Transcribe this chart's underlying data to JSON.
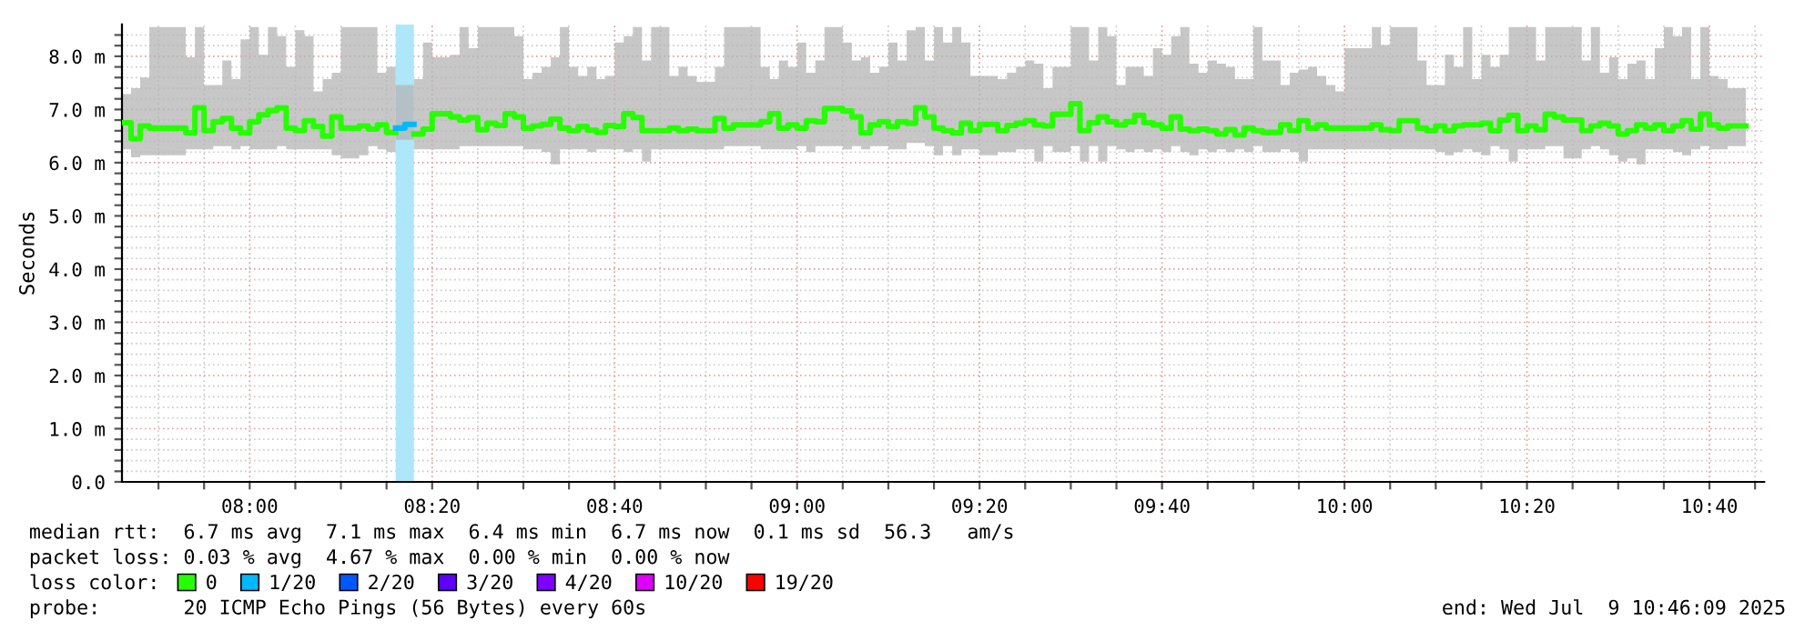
{
  "chart_data": {
    "type": "step",
    "ylabel": "Seconds",
    "legend_title": "loss color:",
    "annotations": [
      "median rtt:  6.7 ms avg  7.1 ms max  6.4 ms min  6.7 ms now  0.1 ms sd  56.3   am/s",
      "packet loss: 0.03 % avg  4.67 % max  0.00 % min  0.00 % now",
      "probe:       20 ICMP Echo Pings (56 Bytes) every 60s",
      "end: Wed Jul  9 10:46:09 2025"
    ],
    "xlim": [
      "2025-07-09T07:46",
      "2025-07-09T10:46"
    ],
    "xticks": [
      {
        "value": "2025-07-09T07:50",
        "label": null
      },
      {
        "value": "2025-07-09T07:55",
        "label": null
      },
      {
        "value": "2025-07-09T08:00",
        "label": "08:00"
      },
      {
        "value": "2025-07-09T08:05",
        "label": null
      },
      {
        "value": "2025-07-09T08:10",
        "label": null
      },
      {
        "value": "2025-07-09T08:15",
        "label": null
      },
      {
        "value": "2025-07-09T08:20",
        "label": "08:20"
      },
      {
        "value": "2025-07-09T08:25",
        "label": null
      },
      {
        "value": "2025-07-09T08:30",
        "label": null
      },
      {
        "value": "2025-07-09T08:35",
        "label": null
      },
      {
        "value": "2025-07-09T08:40",
        "label": "08:40"
      },
      {
        "value": "2025-07-09T08:45",
        "label": null
      },
      {
        "value": "2025-07-09T08:50",
        "label": null
      },
      {
        "value": "2025-07-09T08:55",
        "label": null
      },
      {
        "value": "2025-07-09T09:00",
        "label": "09:00"
      },
      {
        "value": "2025-07-09T09:05",
        "label": null
      },
      {
        "value": "2025-07-09T09:10",
        "label": null
      },
      {
        "value": "2025-07-09T09:15",
        "label": null
      },
      {
        "value": "2025-07-09T09:20",
        "label": "09:20"
      },
      {
        "value": "2025-07-09T09:25",
        "label": null
      },
      {
        "value": "2025-07-09T09:30",
        "label": null
      },
      {
        "value": "2025-07-09T09:35",
        "label": null
      },
      {
        "value": "2025-07-09T09:40",
        "label": "09:40"
      },
      {
        "value": "2025-07-09T09:45",
        "label": null
      },
      {
        "value": "2025-07-09T09:50",
        "label": null
      },
      {
        "value": "2025-07-09T09:55",
        "label": null
      },
      {
        "value": "2025-07-09T10:00",
        "label": "10:00"
      },
      {
        "value": "2025-07-09T10:05",
        "label": null
      },
      {
        "value": "2025-07-09T10:10",
        "label": null
      },
      {
        "value": "2025-07-09T10:15",
        "label": null
      },
      {
        "value": "2025-07-09T10:20",
        "label": "10:20"
      },
      {
        "value": "2025-07-09T10:25",
        "label": null
      },
      {
        "value": "2025-07-09T10:30",
        "label": null
      },
      {
        "value": "2025-07-09T10:35",
        "label": null
      },
      {
        "value": "2025-07-09T10:40",
        "label": "10:40"
      },
      {
        "value": "2025-07-09T10:45",
        "label": null
      }
    ],
    "ylim": [
      0,
      8.6
    ],
    "yticks": [
      {
        "value": 0,
        "label": "0.0"
      },
      {
        "value": 0.2,
        "label": null
      },
      {
        "value": 0.4,
        "label": null
      },
      {
        "value": 0.6,
        "label": null
      },
      {
        "value": 0.8,
        "label": null
      },
      {
        "value": 1,
        "label": "1.0 m"
      },
      {
        "value": 1.2,
        "label": null
      },
      {
        "value": 1.4,
        "label": null
      },
      {
        "value": 1.6,
        "label": null
      },
      {
        "value": 1.8,
        "label": null
      },
      {
        "value": 2,
        "label": "2.0 m"
      },
      {
        "value": 2.2,
        "label": null
      },
      {
        "value": 2.4,
        "label": null
      },
      {
        "value": 2.6,
        "label": null
      },
      {
        "value": 2.8,
        "label": null
      },
      {
        "value": 3,
        "label": "3.0 m"
      },
      {
        "value": 3.2,
        "label": null
      },
      {
        "value": 3.4,
        "label": null
      },
      {
        "value": 3.6,
        "label": null
      },
      {
        "value": 3.8,
        "label": null
      },
      {
        "value": 4,
        "label": "4.0 m"
      },
      {
        "value": 4.2,
        "label": null
      },
      {
        "value": 4.4,
        "label": null
      },
      {
        "value": 4.6,
        "label": null
      },
      {
        "value": 4.8,
        "label": null
      },
      {
        "value": 5,
        "label": "5.0 m"
      },
      {
        "value": 5.2,
        "label": null
      },
      {
        "value": 5.4,
        "label": null
      },
      {
        "value": 5.6,
        "label": null
      },
      {
        "value": 5.8,
        "label": null
      },
      {
        "value": 6,
        "label": "6.0 m"
      },
      {
        "value": 6.2,
        "label": null
      },
      {
        "value": 6.4,
        "label": null
      },
      {
        "value": 6.6,
        "label": null
      },
      {
        "value": 6.8,
        "label": null
      },
      {
        "value": 7,
        "label": "7.0 m"
      },
      {
        "value": 7.2,
        "label": null
      },
      {
        "value": 7.4,
        "label": null
      },
      {
        "value": 7.6,
        "label": null
      },
      {
        "value": 7.8,
        "label": null
      },
      {
        "value": 8,
        "label": "8.0 m"
      },
      {
        "value": 8.2,
        "label": null
      },
      {
        "value": 8.4,
        "label": null
      }
    ],
    "grid": true,
    "legend": "bottom",
    "bands": [
      {
        "axis": "x",
        "from": "2025-07-09T08:16",
        "to": "2025-07-09T08:18",
        "color": "#aee7fa"
      }
    ],
    "series": [
      {
        "name": "0",
        "color": "#26ff00",
        "x": [
          "2025-07-09T07:46",
          "2025-07-09T07:47",
          "2025-07-09T07:48",
          "2025-07-09T07:49",
          "2025-07-09T07:53",
          "2025-07-09T07:54",
          "2025-07-09T07:55",
          "2025-07-09T07:56",
          "2025-07-09T07:57",
          "2025-07-09T07:58",
          "2025-07-09T07:59",
          "2025-07-09T08:00",
          "2025-07-09T08:01",
          "2025-07-09T08:02",
          "2025-07-09T08:03",
          "2025-07-09T08:04",
          "2025-07-09T08:05",
          "2025-07-09T08:06",
          "2025-07-09T08:07",
          "2025-07-09T08:08",
          "2025-07-09T08:09",
          "2025-07-09T08:10",
          "2025-07-09T08:12",
          "2025-07-09T08:13",
          "2025-07-09T08:14",
          "2025-07-09T08:15",
          "2025-07-09T08:16",
          "2025-07-09T08:18",
          "2025-07-09T08:19",
          "2025-07-09T08:20",
          "2025-07-09T08:22",
          "2025-07-09T08:23",
          "2025-07-09T08:24",
          "2025-07-09T08:25",
          "2025-07-09T08:26",
          "2025-07-09T08:27",
          "2025-07-09T08:28",
          "2025-07-09T08:29",
          "2025-07-09T08:30",
          "2025-07-09T08:31",
          "2025-07-09T08:32",
          "2025-07-09T08:33",
          "2025-07-09T08:34",
          "2025-07-09T08:35",
          "2025-07-09T08:36",
          "2025-07-09T08:37",
          "2025-07-09T08:38",
          "2025-07-09T08:39",
          "2025-07-09T08:40",
          "2025-07-09T08:41",
          "2025-07-09T08:42",
          "2025-07-09T08:43",
          "2025-07-09T08:44",
          "2025-07-09T08:46",
          "2025-07-09T08:47",
          "2025-07-09T08:48",
          "2025-07-09T08:49",
          "2025-07-09T08:51",
          "2025-07-09T08:52",
          "2025-07-09T08:53",
          "2025-07-09T08:56",
          "2025-07-09T08:57",
          "2025-07-09T08:58",
          "2025-07-09T08:59",
          "2025-07-09T09:00",
          "2025-07-09T09:01",
          "2025-07-09T09:02",
          "2025-07-09T09:03",
          "2025-07-09T09:05",
          "2025-07-09T09:06",
          "2025-07-09T09:07",
          "2025-07-09T09:08",
          "2025-07-09T09:09",
          "2025-07-09T09:10",
          "2025-07-09T09:11",
          "2025-07-09T09:12",
          "2025-07-09T09:13",
          "2025-07-09T09:14",
          "2025-07-09T09:15",
          "2025-07-09T09:16",
          "2025-07-09T09:17",
          "2025-07-09T09:18",
          "2025-07-09T09:19",
          "2025-07-09T09:20",
          "2025-07-09T09:22",
          "2025-07-09T09:23",
          "2025-07-09T09:24",
          "2025-07-09T09:25",
          "2025-07-09T09:26",
          "2025-07-09T09:27",
          "2025-07-09T09:28",
          "2025-07-09T09:30",
          "2025-07-09T09:31",
          "2025-07-09T09:32",
          "2025-07-09T09:33",
          "2025-07-09T09:34",
          "2025-07-09T09:35",
          "2025-07-09T09:36",
          "2025-07-09T09:37",
          "2025-07-09T09:38",
          "2025-07-09T09:39",
          "2025-07-09T09:40",
          "2025-07-09T09:41",
          "2025-07-09T09:42",
          "2025-07-09T09:43",
          "2025-07-09T09:44",
          "2025-07-09T09:45",
          "2025-07-09T09:46",
          "2025-07-09T09:47",
          "2025-07-09T09:48",
          "2025-07-09T09:49",
          "2025-07-09T09:50",
          "2025-07-09T09:51",
          "2025-07-09T09:53",
          "2025-07-09T09:54",
          "2025-07-09T09:55",
          "2025-07-09T09:56",
          "2025-07-09T09:57",
          "2025-07-09T09:58",
          "2025-07-09T09:59",
          "2025-07-09T10:00",
          "2025-07-09T10:03",
          "2025-07-09T10:04",
          "2025-07-09T10:05",
          "2025-07-09T10:06",
          "2025-07-09T10:08",
          "2025-07-09T10:09",
          "2025-07-09T10:10",
          "2025-07-09T10:11",
          "2025-07-09T10:12",
          "2025-07-09T10:13",
          "2025-07-09T10:14",
          "2025-07-09T10:15",
          "2025-07-09T10:16",
          "2025-07-09T10:17",
          "2025-07-09T10:18",
          "2025-07-09T10:19",
          "2025-07-09T10:20",
          "2025-07-09T10:21",
          "2025-07-09T10:22",
          "2025-07-09T10:23",
          "2025-07-09T10:24",
          "2025-07-09T10:26",
          "2025-07-09T10:27",
          "2025-07-09T10:28",
          "2025-07-09T10:29",
          "2025-07-09T10:30",
          "2025-07-09T10:31",
          "2025-07-09T10:32",
          "2025-07-09T10:33",
          "2025-07-09T10:34",
          "2025-07-09T10:35",
          "2025-07-09T10:36",
          "2025-07-09T10:37",
          "2025-07-09T10:38",
          "2025-07-09T10:39",
          "2025-07-09T10:40",
          "2025-07-09T10:41",
          "2025-07-09T10:42",
          "2025-07-09T10:44"
        ],
        "values": [
          6.75,
          6.45,
          6.69,
          6.65,
          6.56,
          7.03,
          6.6,
          6.77,
          6.83,
          6.65,
          6.56,
          6.77,
          6.9,
          6.98,
          7.03,
          6.65,
          6.6,
          6.79,
          6.68,
          6.5,
          6.86,
          6.65,
          6.69,
          6.63,
          6.71,
          6.57,
          null,
          6.54,
          6.63,
          6.92,
          6.86,
          6.8,
          6.85,
          6.62,
          6.74,
          6.7,
          6.92,
          6.86,
          6.65,
          6.69,
          6.72,
          6.82,
          6.65,
          6.6,
          6.68,
          6.61,
          6.57,
          6.7,
          6.68,
          6.92,
          6.85,
          6.6,
          6.6,
          6.65,
          6.6,
          6.63,
          6.6,
          6.83,
          6.65,
          6.71,
          6.77,
          6.92,
          6.65,
          6.71,
          6.65,
          6.79,
          6.77,
          7.02,
          6.97,
          6.86,
          6.56,
          6.71,
          6.77,
          6.68,
          6.77,
          6.74,
          7.03,
          6.86,
          6.65,
          6.6,
          6.56,
          6.74,
          6.6,
          6.72,
          6.6,
          6.7,
          6.74,
          6.79,
          6.71,
          6.69,
          6.91,
          7.11,
          6.6,
          6.75,
          6.86,
          6.77,
          6.71,
          6.77,
          6.89,
          6.75,
          6.71,
          6.65,
          6.86,
          6.63,
          6.6,
          6.63,
          6.6,
          6.54,
          6.62,
          6.52,
          6.65,
          6.6,
          6.57,
          6.71,
          6.6,
          6.79,
          6.65,
          6.71,
          6.65,
          6.65,
          6.65,
          6.71,
          6.62,
          6.6,
          6.79,
          6.65,
          6.6,
          6.69,
          6.6,
          6.69,
          6.71,
          6.71,
          6.74,
          6.6,
          6.8,
          6.89,
          6.6,
          6.69,
          6.62,
          6.91,
          6.86,
          6.8,
          6.6,
          6.69,
          6.74,
          6.69,
          6.54,
          6.6,
          6.71,
          6.65,
          6.71,
          6.6,
          6.69,
          6.79,
          6.63,
          6.91,
          6.71,
          6.65,
          6.69,
          6.69
        ],
        "lower": [
          6.25,
          6.1,
          6.14,
          6.14,
          6.25,
          6.25,
          6.25,
          6.31,
          6.31,
          6.25,
          6.31,
          6.25,
          6.25,
          6.25,
          6.31,
          6.25,
          6.25,
          6.25,
          6.25,
          6.25,
          6.14,
          6.08,
          6.14,
          6.31,
          6.25,
          6.2,
          null,
          6.25,
          6.25,
          6.25,
          6.25,
          6.31,
          6.31,
          6.31,
          6.31,
          6.31,
          6.31,
          6.31,
          6.25,
          6.25,
          6.2,
          5.97,
          6.25,
          6.25,
          6.25,
          6.2,
          6.25,
          6.25,
          6.25,
          6.2,
          6.25,
          6.02,
          6.25,
          6.25,
          6.25,
          6.25,
          6.25,
          6.25,
          6.31,
          6.31,
          6.25,
          6.25,
          6.25,
          6.25,
          6.31,
          6.2,
          6.31,
          6.31,
          6.25,
          6.31,
          6.25,
          6.31,
          6.31,
          6.25,
          6.25,
          6.37,
          6.37,
          6.31,
          6.14,
          6.31,
          6.14,
          6.25,
          6.25,
          6.14,
          6.2,
          6.2,
          6.25,
          6.25,
          6.02,
          6.31,
          6.2,
          6.31,
          6.02,
          6.31,
          6.02,
          6.31,
          6.25,
          6.2,
          6.25,
          6.2,
          6.25,
          6.2,
          6.31,
          6.2,
          6.14,
          6.25,
          6.2,
          6.25,
          6.2,
          6.25,
          6.2,
          6.31,
          6.2,
          6.25,
          6.2,
          6.02,
          6.25,
          6.25,
          6.25,
          6.25,
          6.25,
          6.25,
          6.25,
          6.25,
          6.25,
          6.25,
          6.25,
          6.2,
          6.14,
          6.2,
          6.25,
          6.2,
          6.14,
          6.31,
          6.25,
          6.02,
          6.25,
          6.25,
          6.25,
          6.31,
          6.31,
          6.08,
          6.25,
          6.31,
          6.25,
          6.14,
          6.02,
          6.08,
          5.97,
          6.25,
          6.25,
          6.25,
          6.2,
          6.14,
          6.25,
          6.31,
          6.25,
          6.25,
          6.31,
          6.31
        ],
        "upper": [
          7.29,
          7.4,
          7.6,
          8.55,
          7.98,
          8.55,
          7.46,
          7.46,
          7.92,
          7.57,
          8.32,
          8.55,
          8.03,
          8.55,
          8.38,
          7.8,
          8.49,
          8.38,
          7.34,
          7.57,
          7.69,
          8.55,
          8.55,
          8.55,
          7.69,
          7.8,
          null,
          7.57,
          8.26,
          7.98,
          8.03,
          8.55,
          8.15,
          8.55,
          8.55,
          8.55,
          8.55,
          8.38,
          7.57,
          7.69,
          7.8,
          7.98,
          8.55,
          7.8,
          7.63,
          7.8,
          7.57,
          7.63,
          8.26,
          8.38,
          8.55,
          7.92,
          8.55,
          7.63,
          7.8,
          7.63,
          7.52,
          7.8,
          8.55,
          8.55,
          7.8,
          7.57,
          7.92,
          7.8,
          8.26,
          7.69,
          7.92,
          8.55,
          8.26,
          7.92,
          7.98,
          7.69,
          7.8,
          8.26,
          7.92,
          8.49,
          8.55,
          7.92,
          8.55,
          8.26,
          8.55,
          8.26,
          7.63,
          7.63,
          7.57,
          7.69,
          7.8,
          7.92,
          7.86,
          7.4,
          7.8,
          8.55,
          8.55,
          7.92,
          8.55,
          8.38,
          7.46,
          7.8,
          7.8,
          7.63,
          8.15,
          8.03,
          8.38,
          8.55,
          7.86,
          7.69,
          7.92,
          7.86,
          7.8,
          7.57,
          7.57,
          8.55,
          7.92,
          7.46,
          7.69,
          7.75,
          7.8,
          7.63,
          7.46,
          7.34,
          8.15,
          8.55,
          8.21,
          8.55,
          8.55,
          7.92,
          7.46,
          7.46,
          8.03,
          7.8,
          8.55,
          7.57,
          8.03,
          7.8,
          8.03,
          8.55,
          8.55,
          8.55,
          7.92,
          8.55,
          8.55,
          8.55,
          7.92,
          8.55,
          7.69,
          7.98,
          7.57,
          7.86,
          7.92,
          7.57,
          8.15,
          8.55,
          8.38,
          8.55,
          7.57,
          8.55,
          7.63,
          7.57,
          7.4,
          7.4
        ]
      },
      {
        "name": "1/20",
        "color": "#00b8ff",
        "x": [
          "2025-07-09T08:16",
          "2025-07-09T08:17",
          "2025-07-09T08:18"
        ],
        "values": [
          6.65,
          6.72,
          6.72
        ],
        "lower": [
          6.43,
          6.43,
          6.43
        ],
        "upper": [
          7.46,
          7.46,
          7.46
        ]
      },
      {
        "name": "2/20",
        "color": "#0059ff"
      },
      {
        "name": "3/20",
        "color": "#5e00ff"
      },
      {
        "name": "4/20",
        "color": "#7e00ff"
      },
      {
        "name": "10/20",
        "color": "#dd00ff"
      },
      {
        "name": "19/20",
        "color": "#ff0000"
      }
    ]
  }
}
